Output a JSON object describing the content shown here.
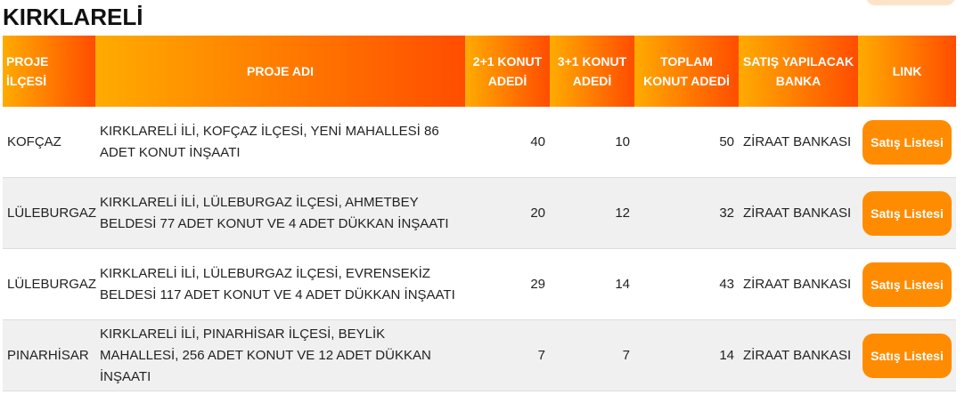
{
  "header": {
    "title": "KIRKLARELİ"
  },
  "table": {
    "columns": [
      "PROJE İLÇESİ",
      "PROJE ADI",
      "2+1 KONUT ADEDİ",
      "3+1 KONUT ADEDİ",
      "TOPLAM KONUT ADEDİ",
      "SATIŞ YAPILACAK BANKA",
      "LINK"
    ],
    "rows": [
      [
        "KOFÇAZ",
        "KIRKLARELİ İLİ, KOFÇAZ İLÇESİ, YENİ MAHALLESİ 86 ADET KONUT İNŞAATI",
        40,
        10,
        50,
        "ZİRAAT BANKASI",
        "Satış Listesi"
      ],
      [
        "LÜLEBURGAZ",
        "KIRKLARELİ İLİ, LÜLEBURGAZ İLÇESİ, AHMETBEY BELDESİ 77 ADET KONUT VE 4 ADET DÜKKAN İNŞAATI",
        20,
        12,
        32,
        "ZİRAAT BANKASI",
        "Satış Listesi"
      ],
      [
        "LÜLEBURGAZ",
        "KIRKLARELİ İLİ, LÜLEBURGAZ İLÇESİ, EVRENSEKİZ BELDESİ 117 ADET KONUT VE 4 ADET DÜKKAN İNŞAATI",
        29,
        14,
        43,
        "ZİRAAT BANKASI",
        "Satış Listesi"
      ],
      [
        "PINARHİSAR",
        "KIRKLARELİ İLİ, PINARHİSAR İLÇESİ, BEYLİK MAHALLESİ, 256 ADET KONUT VE 12 ADET DÜKKAN İNŞAATI",
        7,
        7,
        14,
        "ZİRAAT BANKASI",
        "Satış Listesi"
      ]
    ]
  }
}
